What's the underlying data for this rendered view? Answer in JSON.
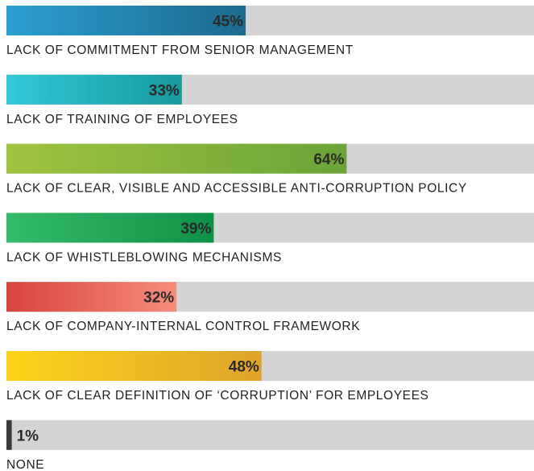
{
  "chart_data": {
    "type": "bar",
    "orientation": "horizontal",
    "categories": [
      "LACK OF COMMITMENT FROM SENIOR MANAGEMENT",
      "LACK OF TRAINING OF EMPLOYEES",
      "LACK OF CLEAR, VISIBLE AND ACCESSIBLE ANTI-CORRUPTION POLICY",
      "LACK OF WHISTLEBLOWING MECHANISMS",
      "LACK OF COMPANY-INTERNAL CONTROL FRAMEWORK",
      "LACK OF CLEAR DEFINITION OF ‘CORRUPTION’ FOR EMPLOYEES",
      "NONE"
    ],
    "values": [
      45,
      33,
      64,
      39,
      32,
      48,
      1
    ],
    "value_labels": [
      "45%",
      "33%",
      "64%",
      "39%",
      "32%",
      "48%",
      "1%"
    ],
    "colors": [
      [
        "#2a9fd2",
        "#1d6a8c"
      ],
      [
        "#33c8d8",
        "#179a9c"
      ],
      [
        "#a0c43e",
        "#6aa438"
      ],
      [
        "#34bb6c",
        "#0f9146"
      ],
      [
        "#d6433d",
        "#f68d7c"
      ],
      [
        "#fdd41a",
        "#dfa42b"
      ],
      [
        "#3a3a3a",
        "#3a3a3a"
      ]
    ],
    "track_color": "#d4d4d4",
    "xlim": [
      0,
      100
    ]
  }
}
